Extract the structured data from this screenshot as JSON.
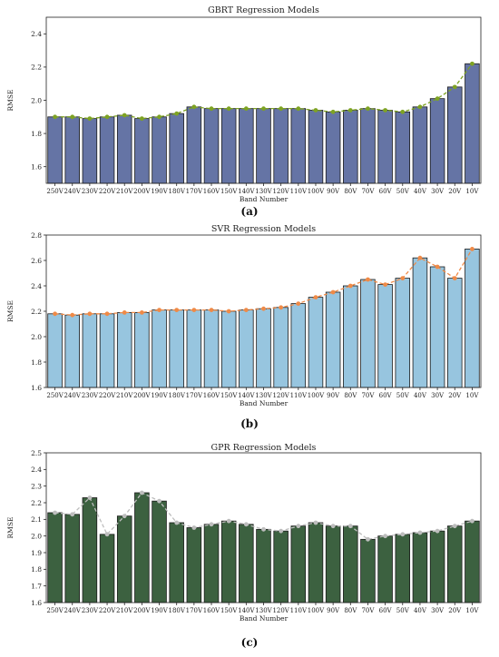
{
  "chart_data": [
    {
      "type": "bar",
      "title": "GBRT Regression Models",
      "xlabel": "Band Number",
      "ylabel": "RMSE",
      "panel_label": "(a)",
      "ylim": [
        1.5,
        2.5
      ],
      "yticks": [
        "1.6",
        "1.8",
        "2.0",
        "2.2",
        "2.4"
      ],
      "categories": [
        "250V",
        "240V",
        "230V",
        "220V",
        "210V",
        "200V",
        "190V",
        "180V",
        "170V",
        "160V",
        "150V",
        "140V",
        "130V",
        "120V",
        "110V",
        "100V",
        "90V",
        "80V",
        "70V",
        "60V",
        "50V",
        "40V",
        "30V",
        "20V",
        "10V"
      ],
      "values": [
        1.9,
        1.9,
        1.89,
        1.9,
        1.91,
        1.89,
        1.9,
        1.92,
        1.96,
        1.95,
        1.95,
        1.95,
        1.95,
        1.95,
        1.95,
        1.94,
        1.93,
        1.94,
        1.95,
        1.94,
        1.93,
        1.96,
        2.01,
        2.08,
        2.22
      ],
      "bar_color": "#6574a5",
      "line_color": "#7ea323",
      "grid": false
    },
    {
      "type": "bar",
      "title": "SVR Regression Models",
      "xlabel": "Band Number",
      "ylabel": "RMSE",
      "panel_label": "(b)",
      "ylim": [
        1.6,
        2.8
      ],
      "yticks": [
        "1.6",
        "1.8",
        "2.0",
        "2.2",
        "2.4",
        "2.6",
        "2.8"
      ],
      "categories": [
        "250V",
        "240V",
        "230V",
        "220V",
        "210V",
        "200V",
        "190V",
        "180V",
        "170V",
        "160V",
        "150V",
        "140V",
        "130V",
        "120V",
        "110V",
        "100V",
        "90V",
        "80V",
        "70V",
        "60V",
        "50V",
        "40V",
        "30V",
        "20V",
        "10V"
      ],
      "values": [
        2.18,
        2.17,
        2.18,
        2.18,
        2.19,
        2.19,
        2.21,
        2.21,
        2.21,
        2.21,
        2.2,
        2.21,
        2.22,
        2.23,
        2.26,
        2.31,
        2.35,
        2.4,
        2.45,
        2.41,
        2.46,
        2.62,
        2.55,
        2.46,
        2.69
      ],
      "bar_color": "#97c5df",
      "line_color": "#ef8a47",
      "grid": false
    },
    {
      "type": "bar",
      "title": "GPR Regression Models",
      "xlabel": "Band Number",
      "ylabel": "RMSE",
      "panel_label": "(c)",
      "ylim": [
        1.6,
        2.5
      ],
      "yticks": [
        "1.6",
        "1.7",
        "1.8",
        "1.9",
        "2.0",
        "2.1",
        "2.2",
        "2.3",
        "2.4",
        "2.5"
      ],
      "categories": [
        "250V",
        "240V",
        "230V",
        "220V",
        "210V",
        "200V",
        "190V",
        "180V",
        "170V",
        "160V",
        "150V",
        "140V",
        "130V",
        "120V",
        "110V",
        "100V",
        "90V",
        "80V",
        "70V",
        "60V",
        "50V",
        "40V",
        "30V",
        "20V",
        "10V"
      ],
      "values": [
        2.14,
        2.13,
        2.23,
        2.01,
        2.12,
        2.26,
        2.21,
        2.08,
        2.05,
        2.07,
        2.09,
        2.07,
        2.04,
        2.03,
        2.06,
        2.08,
        2.06,
        2.06,
        1.98,
        2.0,
        2.01,
        2.02,
        2.03,
        2.06,
        2.09
      ],
      "bar_color": "#3c6140",
      "line_color": "#bdbdbd",
      "grid": false
    }
  ]
}
